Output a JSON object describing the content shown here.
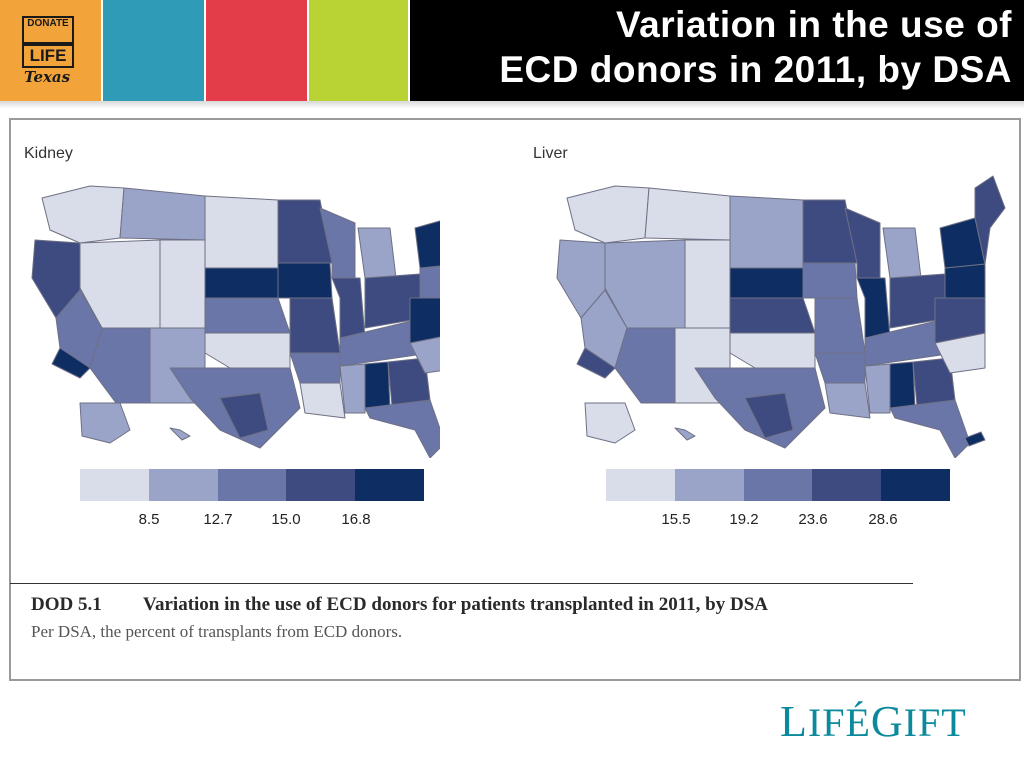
{
  "header": {
    "title_line1": "Variation in the use of",
    "title_line2": "ECD donors in 2011, by DSA",
    "badge": {
      "line1": "DONATE",
      "line2": "LIFE",
      "line3": "Texas"
    },
    "tile_colors": [
      "#f2a33a",
      "#2f9bb7",
      "#e23d48",
      "#b9d334"
    ]
  },
  "maps": {
    "kidney": {
      "label": "Kidney",
      "legend_colors": [
        "#d9dce9",
        "#9aa4c8",
        "#6b76a8",
        "#3d4b80",
        "#0e2d63"
      ],
      "thresholds": [
        "8.5",
        "12.7",
        "15.0",
        "16.8"
      ]
    },
    "liver": {
      "label": "Liver",
      "legend_colors": [
        "#d9dce9",
        "#9aa4c8",
        "#6b76a8",
        "#3d4b80",
        "#0e2d63"
      ],
      "thresholds": [
        "15.5",
        "19.2",
        "23.6",
        "28.6"
      ]
    }
  },
  "caption": {
    "id": "DOD 5.1",
    "title": "Variation in the use of ECD donors for patients transplanted in 2011, by DSA",
    "subtitle": "Per DSA, the percent of transplants from ECD donors."
  },
  "footer": {
    "logo_l": "L",
    "logo_ife": "IFÉ",
    "logo_g": "G",
    "logo_ift": "IFT"
  }
}
